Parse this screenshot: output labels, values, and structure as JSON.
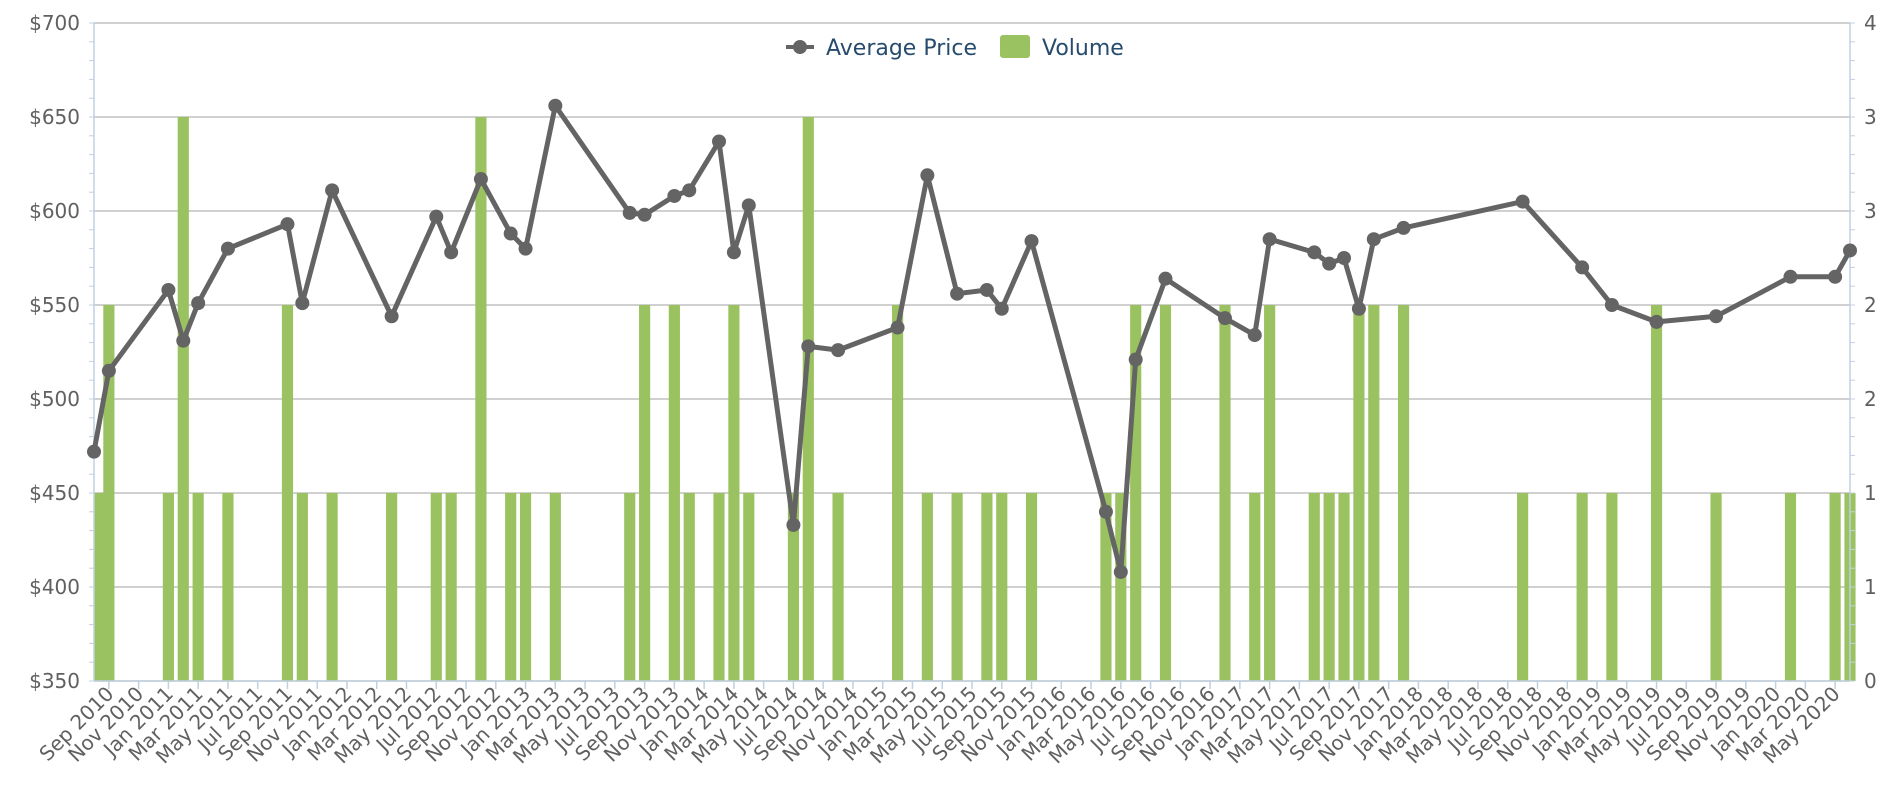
{
  "chart_data": {
    "type": "bar+line",
    "title": "",
    "legend": {
      "placement": "top-center",
      "items": [
        {
          "name": "Average Price",
          "symbol": "line-marker",
          "color": "#646464"
        },
        {
          "name": "Volume",
          "symbol": "square",
          "color": "#9bc260"
        }
      ]
    },
    "left_axis": {
      "ticks": [
        "$350",
        "$400",
        "$450",
        "$500",
        "$550",
        "$600",
        "$650",
        "$700"
      ],
      "range": [
        350,
        700
      ],
      "unit": "$"
    },
    "right_axis": {
      "ticks": [
        "0",
        "1",
        "1",
        "2",
        "2",
        "3",
        "3",
        "4"
      ],
      "range": [
        0,
        3.5
      ]
    },
    "grid": true,
    "x_axis": {
      "start": "2010-08",
      "end": "2020-05",
      "tick_labels": [
        "Sep 2010",
        "Nov 2010",
        "Jan 2011",
        "Mar 2011",
        "May 2011",
        "Jul 2011",
        "Sep 2011",
        "Nov 2011",
        "Jan 2012",
        "Mar 2012",
        "May 2012",
        "Jul 2012",
        "Sep 2012",
        "Nov 2012",
        "Jan 2013",
        "Mar 2013",
        "May 2013",
        "Jul 2013",
        "Sep 2013",
        "Nov 2013",
        "Jan 2014",
        "Mar 2014",
        "May 2014",
        "Jul 2014",
        "Sep 2014",
        "Nov 2014",
        "Jan 2015",
        "Mar 2015",
        "May 2015",
        "Jul 2015",
        "Sep 2015",
        "Nov 2015",
        "Jan 2016",
        "Mar 2016",
        "May 2016",
        "Jul 2016",
        "Sep 2016",
        "Nov 2016",
        "Jan 2017",
        "Mar 2017",
        "May 2017",
        "Jul 2017",
        "Sep 2017",
        "Nov 2017",
        "Jan 2018",
        "Mar 2018",
        "May 2018",
        "Jul 2018",
        "Sep 2018",
        "Nov 2018",
        "Jan 2019",
        "Mar 2019",
        "May 2019",
        "Jul 2019",
        "Sep 2019",
        "Nov 2019",
        "Jan 2020",
        "Mar 2020",
        "May 2020"
      ]
    },
    "series": [
      {
        "name": "Average Price",
        "type": "line",
        "color": "#646464",
        "points": [
          [
            "2010-08",
            472
          ],
          [
            "2010-09",
            515
          ],
          [
            "2011-01",
            558
          ],
          [
            "2011-02",
            531
          ],
          [
            "2011-03",
            551
          ],
          [
            "2011-05",
            580
          ],
          [
            "2011-09",
            593
          ],
          [
            "2011-10",
            551
          ],
          [
            "2011-12",
            611
          ],
          [
            "2012-04",
            544
          ],
          [
            "2012-07",
            597
          ],
          [
            "2012-08",
            578
          ],
          [
            "2012-10",
            617
          ],
          [
            "2012-12",
            588
          ],
          [
            "2013-01",
            580
          ],
          [
            "2013-03",
            656
          ],
          [
            "2013-08",
            599
          ],
          [
            "2013-09",
            598
          ],
          [
            "2013-11",
            608
          ],
          [
            "2013-12",
            611
          ],
          [
            "2014-02",
            637
          ],
          [
            "2014-03",
            578
          ],
          [
            "2014-04",
            603
          ],
          [
            "2014-07",
            433
          ],
          [
            "2014-08",
            528
          ],
          [
            "2014-10",
            526
          ],
          [
            "2015-02",
            538
          ],
          [
            "2015-04",
            619
          ],
          [
            "2015-06",
            556
          ],
          [
            "2015-08",
            558
          ],
          [
            "2015-09",
            548
          ],
          [
            "2015-11",
            584
          ],
          [
            "2016-04",
            440
          ],
          [
            "2016-05",
            408
          ],
          [
            "2016-06",
            521
          ],
          [
            "2016-08",
            564
          ],
          [
            "2016-12",
            543
          ],
          [
            "2017-02",
            534
          ],
          [
            "2017-03",
            585
          ],
          [
            "2017-06",
            578
          ],
          [
            "2017-07",
            572
          ],
          [
            "2017-08",
            575
          ],
          [
            "2017-09",
            548
          ],
          [
            "2017-10",
            585
          ],
          [
            "2017-12",
            591
          ],
          [
            "2018-08",
            605
          ],
          [
            "2018-12",
            570
          ],
          [
            "2019-02",
            550
          ],
          [
            "2019-05",
            541
          ],
          [
            "2019-09",
            544
          ],
          [
            "2020-02",
            565
          ],
          [
            "2020-05",
            565
          ],
          [
            "2020-06",
            579
          ]
        ]
      },
      {
        "name": "Volume",
        "type": "bar",
        "color": "#9bc260",
        "points": [
          [
            "2010-08",
            1
          ],
          [
            "2010-09",
            2
          ],
          [
            "2011-01",
            1
          ],
          [
            "2011-02",
            3
          ],
          [
            "2011-03",
            1
          ],
          [
            "2011-05",
            1
          ],
          [
            "2011-09",
            2
          ],
          [
            "2011-10",
            1
          ],
          [
            "2011-12",
            1
          ],
          [
            "2012-04",
            1
          ],
          [
            "2012-07",
            1
          ],
          [
            "2012-08",
            1
          ],
          [
            "2012-10",
            3
          ],
          [
            "2012-12",
            1
          ],
          [
            "2013-01",
            1
          ],
          [
            "2013-03",
            1
          ],
          [
            "2013-08",
            1
          ],
          [
            "2013-09",
            2
          ],
          [
            "2013-11",
            2
          ],
          [
            "2013-12",
            1
          ],
          [
            "2014-02",
            1
          ],
          [
            "2014-03",
            2
          ],
          [
            "2014-04",
            1
          ],
          [
            "2014-07",
            1
          ],
          [
            "2014-08",
            3
          ],
          [
            "2014-10",
            1
          ],
          [
            "2015-02",
            2
          ],
          [
            "2015-04",
            1
          ],
          [
            "2015-06",
            1
          ],
          [
            "2015-08",
            1
          ],
          [
            "2015-09",
            1
          ],
          [
            "2015-11",
            1
          ],
          [
            "2016-04",
            1
          ],
          [
            "2016-05",
            1
          ],
          [
            "2016-06",
            2
          ],
          [
            "2016-08",
            2
          ],
          [
            "2016-12",
            2
          ],
          [
            "2017-02",
            1
          ],
          [
            "2017-03",
            2
          ],
          [
            "2017-06",
            1
          ],
          [
            "2017-07",
            1
          ],
          [
            "2017-08",
            1
          ],
          [
            "2017-09",
            2
          ],
          [
            "2017-10",
            2
          ],
          [
            "2017-12",
            2
          ],
          [
            "2018-08",
            1
          ],
          [
            "2018-12",
            1
          ],
          [
            "2019-02",
            1
          ],
          [
            "2019-05",
            2
          ],
          [
            "2019-09",
            1
          ],
          [
            "2020-02",
            1
          ],
          [
            "2020-05",
            1
          ],
          [
            "2020-06",
            1
          ]
        ]
      }
    ]
  }
}
